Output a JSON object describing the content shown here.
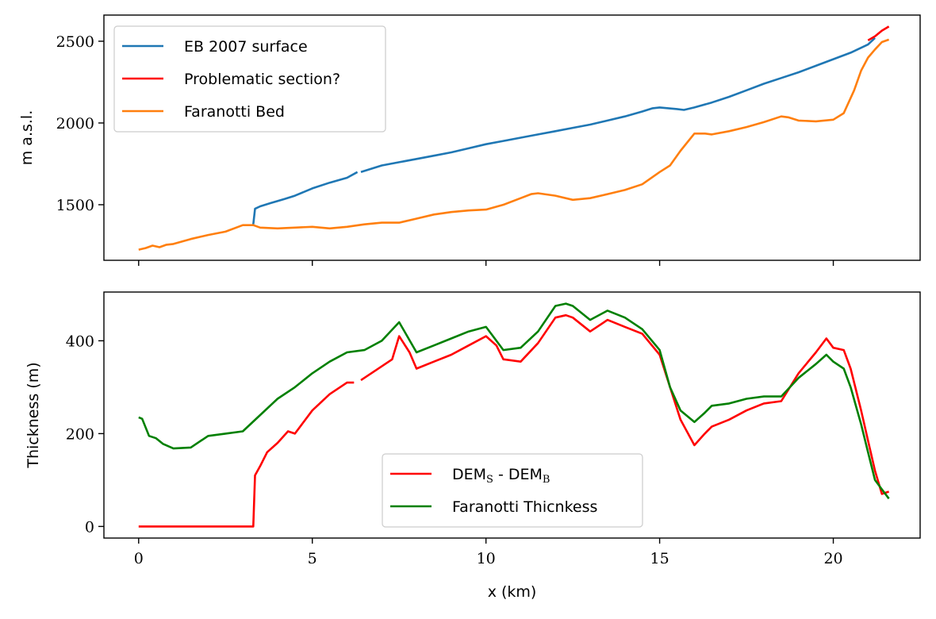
{
  "chart_data": [
    {
      "type": "line",
      "ylabel": "m a.s.l.",
      "xlim": [
        -1,
        22.5
      ],
      "ylim": [
        1160,
        2660
      ],
      "yticks": [
        1500,
        2000,
        2500
      ],
      "xticks": [
        0,
        5,
        10,
        15,
        20
      ],
      "legend_position": "top-left",
      "series": [
        {
          "name": "EB 2007 surface",
          "color": "#1f77b4",
          "segments": [
            [
              [
                3.3,
                1380
              ],
              [
                3.35,
                1475
              ],
              [
                3.5,
                1490
              ],
              [
                3.8,
                1510
              ],
              [
                4.2,
                1535
              ],
              [
                4.5,
                1555
              ],
              [
                5.0,
                1600
              ],
              [
                5.5,
                1635
              ],
              [
                6.0,
                1665
              ],
              [
                6.3,
                1700
              ]
            ],
            [
              [
                6.4,
                1700
              ],
              [
                7.0,
                1740
              ],
              [
                7.5,
                1760
              ],
              [
                8.0,
                1780
              ],
              [
                8.5,
                1800
              ],
              [
                9.0,
                1820
              ],
              [
                9.5,
                1845
              ],
              [
                10.0,
                1870
              ],
              [
                10.5,
                1890
              ],
              [
                11.0,
                1910
              ],
              [
                11.5,
                1930
              ],
              [
                12.0,
                1950
              ],
              [
                12.5,
                1970
              ],
              [
                13.0,
                1990
              ],
              [
                13.5,
                2015
              ],
              [
                14.0,
                2040
              ],
              [
                14.5,
                2070
              ],
              [
                14.8,
                2090
              ],
              [
                15.0,
                2095
              ],
              [
                15.5,
                2085
              ],
              [
                15.7,
                2080
              ],
              [
                16.0,
                2095
              ],
              [
                16.5,
                2125
              ],
              [
                17.0,
                2160
              ],
              [
                17.5,
                2200
              ],
              [
                18.0,
                2240
              ],
              [
                18.5,
                2275
              ],
              [
                19.0,
                2310
              ],
              [
                19.5,
                2350
              ],
              [
                20.0,
                2390
              ],
              [
                20.5,
                2430
              ],
              [
                21.0,
                2480
              ],
              [
                21.2,
                2520
              ]
            ]
          ]
        },
        {
          "name": "Problematic section?",
          "color": "#ff0000",
          "segments": [
            [
              [
                21.0,
                2505
              ],
              [
                21.2,
                2530
              ],
              [
                21.4,
                2565
              ],
              [
                21.6,
                2590
              ]
            ]
          ]
        },
        {
          "name": "Faranotti Bed",
          "color": "#ff7f0e",
          "segments": [
            [
              [
                0,
                1225
              ],
              [
                0.2,
                1235
              ],
              [
                0.4,
                1250
              ],
              [
                0.6,
                1240
              ],
              [
                0.8,
                1255
              ],
              [
                1.0,
                1260
              ],
              [
                1.5,
                1290
              ],
              [
                2.0,
                1315
              ],
              [
                2.5,
                1335
              ],
              [
                3.0,
                1375
              ],
              [
                3.3,
                1375
              ],
              [
                3.5,
                1360
              ],
              [
                4.0,
                1355
              ],
              [
                4.5,
                1360
              ],
              [
                5.0,
                1365
              ],
              [
                5.5,
                1355
              ],
              [
                6.0,
                1365
              ],
              [
                6.5,
                1380
              ],
              [
                7.0,
                1390
              ],
              [
                7.5,
                1390
              ],
              [
                8.0,
                1415
              ],
              [
                8.5,
                1440
              ],
              [
                9.0,
                1455
              ],
              [
                9.5,
                1465
              ],
              [
                10.0,
                1470
              ],
              [
                10.5,
                1500
              ],
              [
                11.0,
                1540
              ],
              [
                11.3,
                1565
              ],
              [
                11.5,
                1570
              ],
              [
                12.0,
                1555
              ],
              [
                12.5,
                1530
              ],
              [
                13.0,
                1540
              ],
              [
                13.5,
                1565
              ],
              [
                14.0,
                1590
              ],
              [
                14.5,
                1625
              ],
              [
                15.0,
                1700
              ],
              [
                15.3,
                1740
              ],
              [
                15.6,
                1830
              ],
              [
                16.0,
                1935
              ],
              [
                16.3,
                1935
              ],
              [
                16.5,
                1930
              ],
              [
                17.0,
                1950
              ],
              [
                17.5,
                1975
              ],
              [
                18.0,
                2005
              ],
              [
                18.5,
                2040
              ],
              [
                18.7,
                2035
              ],
              [
                19.0,
                2015
              ],
              [
                19.5,
                2010
              ],
              [
                20.0,
                2020
              ],
              [
                20.3,
                2060
              ],
              [
                20.6,
                2200
              ],
              [
                20.8,
                2320
              ],
              [
                21.0,
                2400
              ],
              [
                21.2,
                2450
              ],
              [
                21.4,
                2495
              ],
              [
                21.6,
                2510
              ]
            ]
          ]
        }
      ]
    },
    {
      "type": "line",
      "ylabel": "Thickness (m)",
      "xlabel": "x (km)",
      "xlim": [
        -1,
        22.5
      ],
      "ylim": [
        -25,
        505
      ],
      "yticks": [
        0,
        200,
        400
      ],
      "xticks": [
        0,
        5,
        10,
        15,
        20
      ],
      "legend_position": "bottom-center",
      "series": [
        {
          "name": "DEM_S - DEM_B",
          "color": "#ff0000",
          "segments": [
            [
              [
                0,
                0
              ],
              [
                3.3,
                0
              ],
              [
                3.35,
                110
              ],
              [
                3.5,
                130
              ],
              [
                3.7,
                160
              ],
              [
                4.0,
                180
              ],
              [
                4.3,
                205
              ],
              [
                4.5,
                200
              ],
              [
                5.0,
                250
              ],
              [
                5.5,
                285
              ],
              [
                6.0,
                310
              ],
              [
                6.2,
                310
              ]
            ],
            [
              [
                6.4,
                315
              ],
              [
                6.8,
                335
              ],
              [
                7.0,
                345
              ],
              [
                7.3,
                360
              ],
              [
                7.5,
                410
              ],
              [
                7.8,
                375
              ],
              [
                8.0,
                340
              ],
              [
                8.5,
                355
              ],
              [
                9.0,
                370
              ],
              [
                9.5,
                390
              ],
              [
                10.0,
                410
              ],
              [
                10.3,
                390
              ],
              [
                10.5,
                360
              ],
              [
                11.0,
                355
              ],
              [
                11.5,
                395
              ],
              [
                12.0,
                450
              ],
              [
                12.3,
                455
              ],
              [
                12.5,
                450
              ],
              [
                13.0,
                420
              ],
              [
                13.5,
                445
              ],
              [
                14.0,
                430
              ],
              [
                14.5,
                415
              ],
              [
                15.0,
                370
              ],
              [
                15.3,
                300
              ],
              [
                15.6,
                230
              ],
              [
                16.0,
                175
              ],
              [
                16.3,
                200
              ],
              [
                16.5,
                215
              ],
              [
                17.0,
                230
              ],
              [
                17.5,
                250
              ],
              [
                18.0,
                265
              ],
              [
                18.5,
                270
              ],
              [
                19.0,
                330
              ],
              [
                19.5,
                375
              ],
              [
                19.8,
                405
              ],
              [
                20.0,
                385
              ],
              [
                20.3,
                380
              ],
              [
                20.5,
                340
              ],
              [
                20.8,
                250
              ],
              [
                21.0,
                185
              ],
              [
                21.2,
                120
              ],
              [
                21.4,
                70
              ],
              [
                21.6,
                75
              ]
            ]
          ]
        },
        {
          "name": "Faranotti Thicnkess",
          "color": "#008000",
          "segments": [
            [
              [
                0,
                235
              ],
              [
                0.1,
                232
              ],
              [
                0.3,
                195
              ],
              [
                0.5,
                190
              ],
              [
                0.7,
                178
              ],
              [
                1.0,
                168
              ],
              [
                1.5,
                170
              ],
              [
                2.0,
                195
              ],
              [
                2.5,
                200
              ],
              [
                3.0,
                205
              ],
              [
                3.5,
                240
              ],
              [
                4.0,
                275
              ],
              [
                4.5,
                300
              ],
              [
                5.0,
                330
              ],
              [
                5.5,
                355
              ],
              [
                6.0,
                375
              ],
              [
                6.5,
                380
              ],
              [
                7.0,
                400
              ],
              [
                7.5,
                440
              ],
              [
                8.0,
                375
              ],
              [
                8.5,
                390
              ],
              [
                9.0,
                405
              ],
              [
                9.5,
                420
              ],
              [
                10.0,
                430
              ],
              [
                10.5,
                380
              ],
              [
                11.0,
                385
              ],
              [
                11.5,
                420
              ],
              [
                12.0,
                475
              ],
              [
                12.3,
                480
              ],
              [
                12.5,
                475
              ],
              [
                13.0,
                445
              ],
              [
                13.5,
                465
              ],
              [
                14.0,
                450
              ],
              [
                14.5,
                425
              ],
              [
                15.0,
                380
              ],
              [
                15.3,
                300
              ],
              [
                15.6,
                250
              ],
              [
                16.0,
                225
              ],
              [
                16.3,
                245
              ],
              [
                16.5,
                260
              ],
              [
                17.0,
                265
              ],
              [
                17.5,
                275
              ],
              [
                18.0,
                280
              ],
              [
                18.5,
                280
              ],
              [
                19.0,
                320
              ],
              [
                19.5,
                350
              ],
              [
                19.8,
                370
              ],
              [
                20.0,
                355
              ],
              [
                20.3,
                340
              ],
              [
                20.5,
                300
              ],
              [
                20.8,
                220
              ],
              [
                21.0,
                160
              ],
              [
                21.2,
                100
              ],
              [
                21.4,
                80
              ],
              [
                21.6,
                60
              ]
            ]
          ]
        }
      ]
    }
  ]
}
